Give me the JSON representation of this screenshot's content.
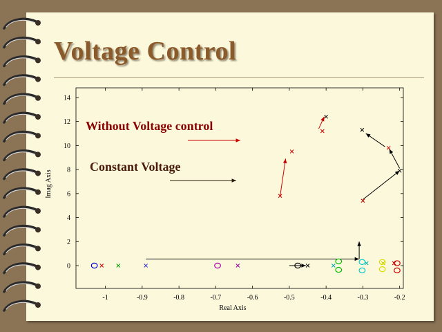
{
  "slide": {
    "title": "Voltage Control"
  },
  "chart_data": {
    "type": "scatter",
    "title": "",
    "xlabel": "Real Axis",
    "ylabel": "Imag Axis",
    "xlim": [
      -1.08,
      -0.19
    ],
    "ylim": [
      -1.9,
      14.8
    ],
    "xticks": [
      -1,
      -0.9,
      -0.8,
      -0.7,
      -0.6,
      -0.5,
      -0.4,
      -0.3,
      -0.2
    ],
    "yticks": [
      0,
      2,
      4,
      6,
      8,
      10,
      12,
      14
    ],
    "grid": false,
    "annotations": [
      {
        "text": "Without Voltage control",
        "color": "#8b0000",
        "arrow_color": "#cc0000"
      },
      {
        "text": "Constant Voltage",
        "color": "#4a1a0a",
        "arrow_color": "#2a1a0a"
      }
    ],
    "series": [
      {
        "marker": "x",
        "color": "#cc0000",
        "points": [
          [
            -1.01,
            0
          ],
          [
            -0.525,
            5.8
          ],
          [
            -0.493,
            9.5
          ],
          [
            -0.41,
            11.2
          ],
          [
            -0.3,
            5.4
          ],
          [
            -0.23,
            9.8
          ],
          [
            -0.215,
            0.2
          ]
        ]
      },
      {
        "marker": "x",
        "color": "#000000",
        "points": [
          [
            -0.4,
            12.4
          ],
          [
            -0.302,
            11.3
          ],
          [
            -0.2,
            7.9
          ],
          [
            -0.45,
            0
          ]
        ]
      },
      {
        "marker": "x",
        "color": "#009900",
        "points": [
          [
            -0.965,
            0
          ]
        ]
      },
      {
        "marker": "x",
        "color": "#3333cc",
        "points": [
          [
            -0.89,
            0
          ]
        ]
      },
      {
        "marker": "x",
        "color": "#aa00aa",
        "points": [
          [
            -0.64,
            0
          ]
        ]
      },
      {
        "marker": "x",
        "color": "#00aaaa",
        "points": [
          [
            -0.38,
            0
          ],
          [
            -0.29,
            0.2
          ]
        ]
      },
      {
        "marker": "x",
        "color": "#cccc00",
        "points": [
          [
            -0.245,
            0.2
          ]
        ]
      },
      {
        "marker": "o",
        "color": "#0000cc",
        "points": [
          [
            -1.03,
            0
          ]
        ]
      },
      {
        "marker": "o",
        "color": "#aa00aa",
        "points": [
          [
            -0.695,
            0
          ]
        ]
      },
      {
        "marker": "o",
        "color": "#000000",
        "points": [
          [
            -0.477,
            0
          ]
        ]
      },
      {
        "marker": "o",
        "color": "#00bb00",
        "points": [
          [
            -0.366,
            0.35
          ],
          [
            -0.366,
            -0.35
          ]
        ]
      },
      {
        "marker": "o",
        "color": "#00cccc",
        "points": [
          [
            -0.302,
            0.3
          ],
          [
            -0.302,
            -0.4
          ]
        ]
      },
      {
        "marker": "o",
        "color": "#dddd00",
        "points": [
          [
            -0.247,
            0.3
          ],
          [
            -0.247,
            -0.3
          ]
        ]
      },
      {
        "marker": "o",
        "color": "#cc0000",
        "points": [
          [
            -0.207,
            0.2
          ],
          [
            -0.207,
            -0.4
          ]
        ]
      }
    ],
    "arrows": [
      {
        "from": [
          -0.525,
          5.8
        ],
        "to": [
          -0.51,
          8.9
        ],
        "color": "#cc0000"
      },
      {
        "from": [
          -0.42,
          11.4
        ],
        "to": [
          -0.405,
          12.4
        ],
        "color": "#cc0000"
      },
      {
        "from": [
          -0.3,
          5.5
        ],
        "to": [
          -0.2,
          7.9
        ],
        "color": "#000000"
      },
      {
        "from": [
          -0.2,
          8.1
        ],
        "to": [
          -0.228,
          9.7
        ],
        "color": "#000000"
      },
      {
        "from": [
          -0.24,
          9.9
        ],
        "to": [
          -0.292,
          11.0
        ],
        "color": "#000000"
      },
      {
        "from": [
          -0.89,
          0.55
        ],
        "to": [
          -0.31,
          0.55
        ],
        "color": "#000000"
      },
      {
        "from": [
          -0.31,
          0.55
        ],
        "to": [
          -0.31,
          2.0
        ],
        "color": "#000000"
      },
      {
        "from": [
          -0.5,
          0
        ],
        "to": [
          -0.455,
          0
        ],
        "color": "#000000"
      }
    ]
  }
}
